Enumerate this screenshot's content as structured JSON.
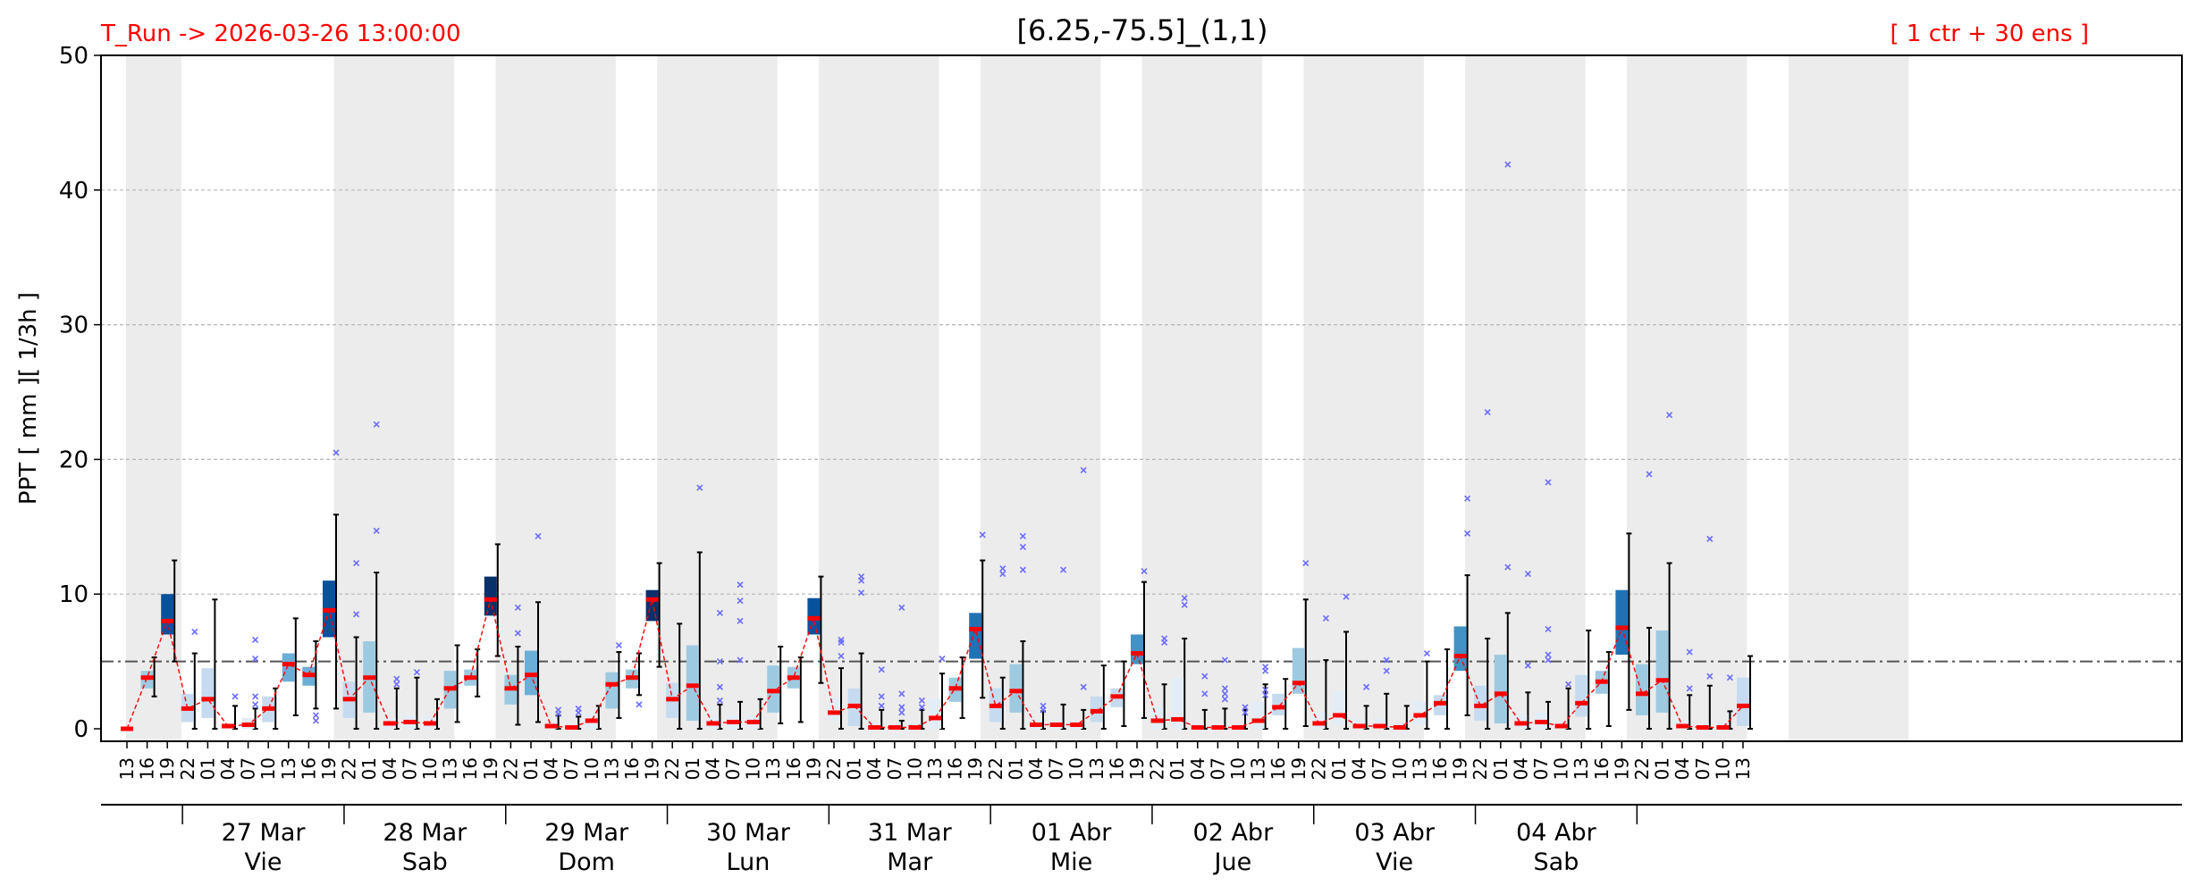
{
  "header": {
    "run_label": "T_Run -> 2026-03-26  13:00:00",
    "title": "[6.25,-75.5]_(1,1)",
    "members_label": "[ 1 ctr + 30 ens ]"
  },
  "colors": {
    "run_label": "#ff0000",
    "members_label": "#ff0000",
    "median": "#ff0000",
    "outlier": "#6b6bff",
    "night_band": "#ececec",
    "reference_line": "#555555",
    "box_palette": [
      "#e3edf7",
      "#c6dbef",
      "#9ecae1",
      "#6baed6",
      "#4292c6",
      "#2171b5",
      "#08519c",
      "#08306b"
    ]
  },
  "chart_data": {
    "type": "box",
    "ylabel": "PPT  [ mm ][ 1/3h ]",
    "ylim": [
      0,
      50
    ],
    "yticks": [
      0,
      10,
      20,
      30,
      40,
      50
    ],
    "reference_line": 5,
    "grid": "horizontal-dashed",
    "hours": [
      "13",
      "16",
      "19",
      "22",
      "01",
      "04",
      "07",
      "10",
      "13",
      "16",
      "19",
      "22",
      "01",
      "04",
      "07",
      "10",
      "13",
      "16",
      "19",
      "22",
      "01",
      "04",
      "07",
      "10",
      "13",
      "16",
      "19",
      "22",
      "01",
      "04",
      "07",
      "10",
      "13",
      "16",
      "19",
      "22",
      "01",
      "04",
      "07",
      "10",
      "13",
      "16",
      "19",
      "22",
      "01",
      "04",
      "07",
      "10",
      "13",
      "16",
      "19",
      "22",
      "01",
      "04",
      "07",
      "10",
      "13",
      "16",
      "19",
      "22",
      "01",
      "04",
      "07",
      "10",
      "13",
      "16",
      "19",
      "22",
      "01",
      "04",
      "07",
      "10",
      "13",
      "16",
      "19",
      "22",
      "01",
      "04",
      "07",
      "10",
      "13"
    ],
    "days": [
      {
        "date": "27 Mar",
        "weekday": "Vie"
      },
      {
        "date": "28 Mar",
        "weekday": "Sab"
      },
      {
        "date": "29 Mar",
        "weekday": "Dom"
      },
      {
        "date": "30 Mar",
        "weekday": "Lun"
      },
      {
        "date": "31 Mar",
        "weekday": "Mar"
      },
      {
        "date": "01 Abr",
        "weekday": "Mie"
      },
      {
        "date": "02 Abr",
        "weekday": "Jue"
      },
      {
        "date": "03 Abr",
        "weekday": "Vie"
      },
      {
        "date": "04 Abr",
        "weekday": "Sab"
      }
    ],
    "median": [
      0,
      3.8,
      8.0,
      1.5,
      2.2,
      0.2,
      0.3,
      1.5,
      4.8,
      4.0,
      8.8,
      2.2,
      3.8,
      0.4,
      0.5,
      0.4,
      3.0,
      3.8,
      9.6,
      3.0,
      4.0,
      0.2,
      0.1,
      0.6,
      3.3,
      3.8,
      9.6,
      2.2,
      3.2,
      0.4,
      0.5,
      0.5,
      2.8,
      3.8,
      8.2,
      1.2,
      1.7,
      0.1,
      0.1,
      0.1,
      0.8,
      3.0,
      7.4,
      1.7,
      2.8,
      0.3,
      0.3,
      0.3,
      1.3,
      2.4,
      5.6,
      0.6,
      0.7,
      0.1,
      0.1,
      0.1,
      0.6,
      1.6,
      3.4,
      0.4,
      1.0,
      0.2,
      0.2,
      0.1,
      1.0,
      1.9,
      5.4,
      1.7,
      2.6,
      0.4,
      0.5,
      0.2,
      1.9,
      3.5,
      7.5,
      2.6,
      3.6,
      0.2,
      0.1,
      0.1,
      1.7
    ],
    "q1": [
      0,
      3.0,
      7.0,
      0.5,
      0.8,
      0,
      0,
      0.5,
      3.5,
      3.2,
      6.8,
      0.8,
      1.2,
      0,
      0,
      0,
      1.5,
      3.2,
      8.4,
      1.8,
      2.5,
      0,
      0,
      0,
      1.5,
      3.0,
      8.0,
      0.8,
      0.6,
      0,
      0,
      0,
      1.2,
      3.0,
      7.0,
      0.6,
      0.2,
      0,
      0,
      0,
      0,
      2.0,
      5.2,
      0.5,
      1.2,
      0,
      0,
      0,
      0.5,
      1.6,
      4.8,
      0,
      0,
      0,
      0,
      0,
      0,
      1.0,
      2.6,
      0,
      0.3,
      0,
      0,
      0,
      0.3,
      1.0,
      4.3,
      0.6,
      0.4,
      0,
      0,
      0,
      0.9,
      2.6,
      5.5,
      1.0,
      1.2,
      0,
      0,
      0,
      0.2
    ],
    "q3": [
      0,
      4.3,
      10.0,
      2.6,
      4.5,
      0.4,
      0.8,
      2.4,
      5.6,
      4.6,
      11.0,
      3.5,
      6.5,
      0.8,
      1.0,
      0.9,
      4.3,
      4.4,
      11.3,
      4.0,
      5.8,
      0.6,
      0.4,
      1.1,
      4.2,
      4.4,
      10.3,
      3.4,
      6.2,
      0.9,
      1.0,
      1.0,
      4.7,
      4.6,
      9.7,
      2.3,
      3.0,
      0.5,
      0.4,
      0.5,
      2.2,
      3.8,
      8.6,
      3.0,
      4.8,
      0.7,
      0.7,
      0.6,
      2.4,
      3.0,
      7.0,
      1.6,
      3.8,
      0.4,
      0.4,
      0.4,
      2.0,
      2.6,
      6.0,
      1.2,
      2.8,
      0.7,
      0.7,
      0.4,
      2.0,
      2.5,
      7.6,
      3.2,
      5.5,
      1.0,
      1.2,
      0.5,
      4.0,
      4.3,
      10.3,
      4.8,
      7.3,
      0.6,
      0.4,
      0.5,
      3.8
    ],
    "whisker_low": [
      0,
      2.4,
      5.0,
      0,
      0,
      0,
      0,
      0,
      1.0,
      1.5,
      1.5,
      0,
      0,
      0,
      0,
      0,
      0.5,
      2.4,
      5.4,
      0.3,
      0.5,
      0,
      0,
      0,
      0.8,
      2.5,
      4.6,
      0,
      0,
      0,
      0,
      0,
      0.4,
      0.5,
      3.4,
      0,
      0,
      0,
      0,
      0,
      0,
      0.8,
      2.3,
      0,
      0,
      0,
      0,
      0,
      0,
      0.2,
      0.8,
      0,
      0,
      0,
      0,
      0,
      0,
      0,
      0.2,
      0,
      0,
      0,
      0,
      0,
      0,
      0,
      1.0,
      0,
      0,
      0,
      0,
      0,
      0,
      0.2,
      1.4,
      0,
      0,
      0,
      0,
      0,
      0
    ],
    "whisker_high": [
      0,
      5.3,
      12.5,
      5.6,
      9.6,
      1.7,
      1.5,
      3.0,
      8.2,
      6.5,
      15.9,
      6.8,
      11.6,
      3.0,
      3.8,
      2.2,
      6.2,
      5.9,
      13.7,
      6.1,
      9.4,
      1.0,
      0.9,
      1.7,
      5.7,
      5.6,
      12.3,
      7.8,
      13.1,
      1.8,
      2.0,
      2.2,
      6.1,
      5.3,
      11.3,
      4.5,
      5.6,
      1.4,
      0.6,
      1.4,
      4.1,
      5.3,
      12.5,
      3.8,
      6.5,
      1.3,
      1.8,
      1.4,
      4.7,
      5.0,
      10.9,
      3.3,
      6.7,
      1.4,
      1.5,
      1.4,
      3.3,
      3.7,
      9.6,
      5.1,
      7.2,
      1.7,
      2.6,
      1.7,
      5.0,
      5.9,
      11.4,
      6.7,
      8.6,
      2.7,
      2.0,
      3.0,
      7.3,
      5.7,
      14.5,
      7.5,
      12.3,
      2.5,
      3.2,
      1.3,
      5.4
    ],
    "outliers": [
      {
        "i": 3,
        "v": [
          7.2
        ]
      },
      {
        "i": 5,
        "v": [
          2.4
        ]
      },
      {
        "i": 6,
        "v": [
          6.6,
          5.2,
          2.4,
          1.8
        ]
      },
      {
        "i": 9,
        "v": [
          1.0,
          0.6
        ]
      },
      {
        "i": 10,
        "v": [
          20.5
        ]
      },
      {
        "i": 11,
        "v": [
          12.3,
          8.5
        ]
      },
      {
        "i": 12,
        "v": [
          22.6,
          14.7
        ]
      },
      {
        "i": 13,
        "v": [
          3.7,
          3.3
        ]
      },
      {
        "i": 14,
        "v": [
          4.2
        ]
      },
      {
        "i": 19,
        "v": [
          9.0,
          7.1
        ]
      },
      {
        "i": 20,
        "v": [
          14.3
        ]
      },
      {
        "i": 21,
        "v": [
          1.4,
          1.1
        ]
      },
      {
        "i": 22,
        "v": [
          1.5,
          1.2
        ]
      },
      {
        "i": 24,
        "v": [
          6.2
        ]
      },
      {
        "i": 25,
        "v": [
          1.8
        ]
      },
      {
        "i": 28,
        "v": [
          17.9
        ]
      },
      {
        "i": 29,
        "v": [
          8.6,
          5.0,
          3.1,
          2.1
        ]
      },
      {
        "i": 30,
        "v": [
          10.7,
          9.5,
          8.0,
          5.1
        ]
      },
      {
        "i": 35,
        "v": [
          6.6,
          6.4,
          5.4
        ]
      },
      {
        "i": 36,
        "v": [
          11.3,
          11.0,
          10.1
        ]
      },
      {
        "i": 37,
        "v": [
          4.4,
          2.4,
          1.7
        ]
      },
      {
        "i": 38,
        "v": [
          9.0,
          2.6,
          1.6,
          1.2
        ]
      },
      {
        "i": 39,
        "v": [
          2.1,
          1.6
        ]
      },
      {
        "i": 40,
        "v": [
          5.2
        ]
      },
      {
        "i": 42,
        "v": [
          14.4
        ]
      },
      {
        "i": 43,
        "v": [
          11.9,
          11.5
        ]
      },
      {
        "i": 44,
        "v": [
          14.3,
          13.5,
          11.8
        ]
      },
      {
        "i": 45,
        "v": [
          1.7,
          1.4
        ]
      },
      {
        "i": 46,
        "v": [
          11.8
        ]
      },
      {
        "i": 47,
        "v": [
          19.2,
          3.1
        ]
      },
      {
        "i": 50,
        "v": [
          11.7
        ]
      },
      {
        "i": 51,
        "v": [
          6.7,
          6.4
        ]
      },
      {
        "i": 52,
        "v": [
          9.7,
          9.2
        ]
      },
      {
        "i": 53,
        "v": [
          3.9,
          2.6
        ]
      },
      {
        "i": 54,
        "v": [
          5.1,
          3.0,
          2.6,
          2.2
        ]
      },
      {
        "i": 55,
        "v": [
          1.6,
          1.2
        ]
      },
      {
        "i": 56,
        "v": [
          4.6,
          4.3,
          2.9,
          2.5
        ]
      },
      {
        "i": 58,
        "v": [
          12.3
        ]
      },
      {
        "i": 59,
        "v": [
          8.2
        ]
      },
      {
        "i": 60,
        "v": [
          9.8
        ]
      },
      {
        "i": 61,
        "v": [
          3.1
        ]
      },
      {
        "i": 62,
        "v": [
          5.1,
          4.3
        ]
      },
      {
        "i": 64,
        "v": [
          5.6
        ]
      },
      {
        "i": 66,
        "v": [
          17.1,
          14.5
        ]
      },
      {
        "i": 67,
        "v": [
          23.5
        ]
      },
      {
        "i": 68,
        "v": [
          41.9,
          12.0
        ]
      },
      {
        "i": 69,
        "v": [
          11.5,
          4.7
        ]
      },
      {
        "i": 70,
        "v": [
          18.3,
          7.4,
          5.5,
          5.1
        ]
      },
      {
        "i": 71,
        "v": [
          3.3
        ]
      },
      {
        "i": 75,
        "v": [
          18.9
        ]
      },
      {
        "i": 76,
        "v": [
          23.3
        ]
      },
      {
        "i": 77,
        "v": [
          5.7,
          3.0
        ]
      },
      {
        "i": 78,
        "v": [
          14.1,
          3.9
        ]
      },
      {
        "i": 79,
        "v": [
          3.8
        ]
      }
    ]
  }
}
